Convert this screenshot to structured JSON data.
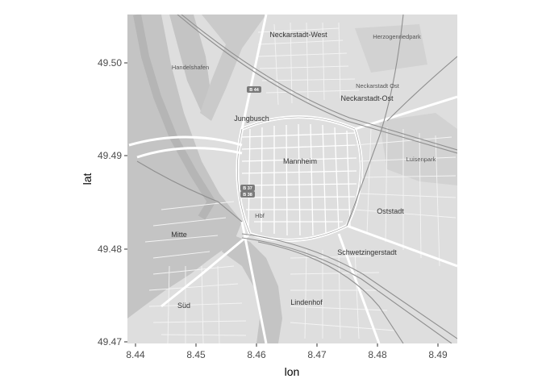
{
  "map": {
    "xlabel": "lon",
    "ylabel": "lat",
    "x_ticks": [
      "8.44",
      "8.45",
      "8.46",
      "8.47",
      "8.48",
      "8.49"
    ],
    "y_ticks": [
      "49.50",
      "49.49",
      "49.48",
      "49.47"
    ],
    "place_labels": {
      "neckarstadt_west": "Neckarstadt-West",
      "neckarstadt_ost": "Neckarstadt-Ost",
      "neckarstadt_ost_small": "Neckarstadt Ost",
      "jungbusch": "Jungbusch",
      "mannheim": "Mannheim",
      "oststadt": "Oststadt",
      "schwetzingerstadt": "Schwetzingerstadt",
      "lindenhof": "Lindenhof",
      "mitte": "Mitte",
      "sud": "Süd",
      "handelshafen": "Handelshafen",
      "luisenpark": "Luisenpark",
      "herzogenriedpark": "Herzogenriedpark",
      "hbf": "Hbf"
    },
    "shields": {
      "b44": "B 44",
      "b37": "B 37",
      "b38": "B 38"
    },
    "colors": {
      "water": "#c4c4c4",
      "land": "#dedede",
      "road": "#ffffff",
      "rail": "#8f8f8f",
      "park": "#cfcfcf"
    }
  }
}
